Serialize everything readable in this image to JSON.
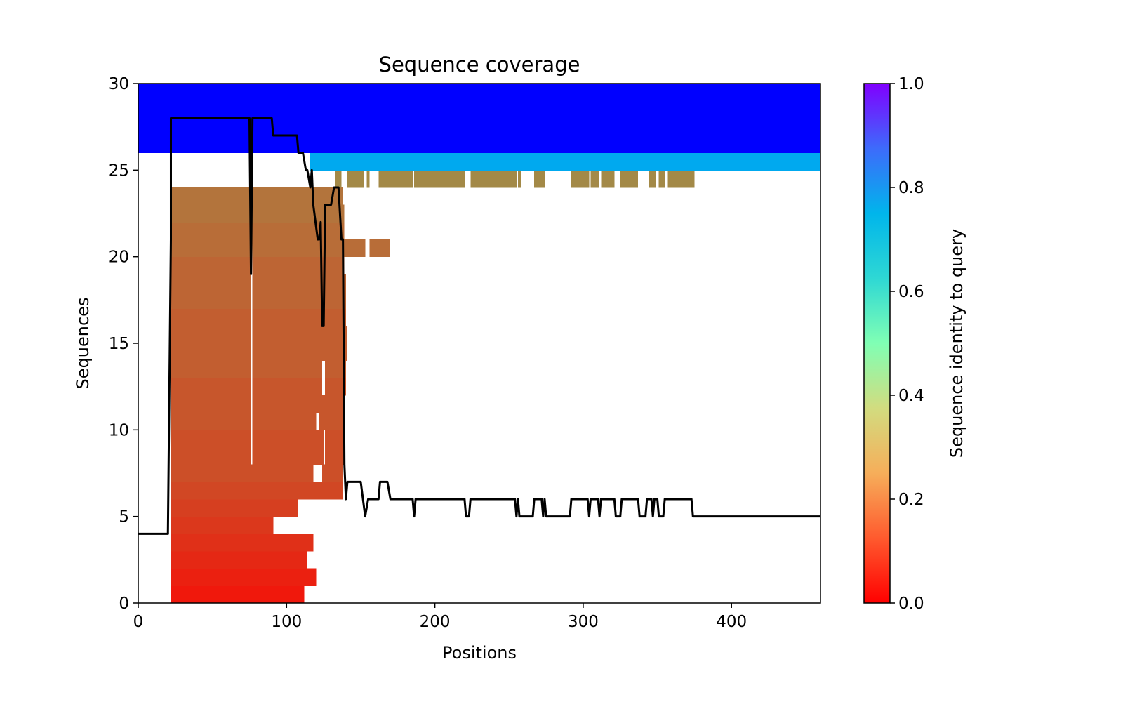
{
  "chart_data": {
    "type": "heatmap",
    "title": "Sequence coverage",
    "xlabel": "Positions",
    "ylabel": "Sequences",
    "xlim": [
      0,
      460
    ],
    "ylim": [
      0,
      30
    ],
    "xticks": [
      "0",
      "100",
      "200",
      "300",
      "400"
    ],
    "yticks": [
      "0",
      "5",
      "10",
      "15",
      "20",
      "25",
      "30"
    ],
    "colorbar": {
      "label": "Sequence identity to query",
      "ticks": [
        "0.0",
        "0.2",
        "0.4",
        "0.6",
        "0.8",
        "1.0"
      ],
      "range": [
        0,
        1
      ],
      "colormap": "rainbow_r"
    },
    "coverage_rows": [
      {
        "row": 0,
        "identity": 0.03,
        "spans": [
          [
            22,
            112
          ]
        ]
      },
      {
        "row": 1,
        "identity": 0.04,
        "spans": [
          [
            22,
            120
          ]
        ]
      },
      {
        "row": 2,
        "identity": 0.05,
        "spans": [
          [
            22,
            114
          ]
        ]
      },
      {
        "row": 3,
        "identity": 0.06,
        "spans": [
          [
            22,
            118
          ]
        ]
      },
      {
        "row": 4,
        "identity": 0.07,
        "spans": [
          [
            22,
            91
          ]
        ]
      },
      {
        "row": 5,
        "identity": 0.08,
        "spans": [
          [
            22,
            108
          ]
        ]
      },
      {
        "row": 6,
        "identity": 0.09,
        "spans": [
          [
            22,
            138
          ]
        ]
      },
      {
        "row": 7,
        "identity": 0.1,
        "spans": [
          [
            22,
            118
          ],
          [
            124,
            138
          ]
        ]
      },
      {
        "row": 8,
        "identity": 0.1,
        "spans": [
          [
            22,
            76
          ],
          [
            77,
            125
          ],
          [
            126,
            139
          ]
        ]
      },
      {
        "row": 9,
        "identity": 0.1,
        "spans": [
          [
            22,
            76
          ],
          [
            77,
            125
          ],
          [
            126,
            139
          ]
        ]
      },
      {
        "row": 10,
        "identity": 0.11,
        "spans": [
          [
            22,
            76
          ],
          [
            77,
            120
          ],
          [
            122,
            139
          ]
        ]
      },
      {
        "row": 11,
        "identity": 0.11,
        "spans": [
          [
            22,
            76
          ],
          [
            77,
            139
          ]
        ]
      },
      {
        "row": 12,
        "identity": 0.11,
        "spans": [
          [
            22,
            76
          ],
          [
            77,
            124
          ],
          [
            126,
            140
          ]
        ]
      },
      {
        "row": 13,
        "identity": 0.12,
        "spans": [
          [
            22,
            76
          ],
          [
            77,
            124
          ],
          [
            126,
            140
          ]
        ]
      },
      {
        "row": 14,
        "identity": 0.12,
        "spans": [
          [
            22,
            76
          ],
          [
            77,
            141
          ]
        ]
      },
      {
        "row": 15,
        "identity": 0.12,
        "spans": [
          [
            22,
            76
          ],
          [
            77,
            141
          ]
        ]
      },
      {
        "row": 16,
        "identity": 0.12,
        "spans": [
          [
            22,
            76
          ],
          [
            77,
            140
          ]
        ]
      },
      {
        "row": 17,
        "identity": 0.13,
        "spans": [
          [
            22,
            76
          ],
          [
            77,
            140
          ]
        ]
      },
      {
        "row": 18,
        "identity": 0.13,
        "spans": [
          [
            22,
            76
          ],
          [
            77,
            140
          ]
        ]
      },
      {
        "row": 19,
        "identity": 0.13,
        "spans": [
          [
            22,
            76
          ],
          [
            77,
            139
          ]
        ]
      },
      {
        "row": 20,
        "identity": 0.14,
        "spans": [
          [
            22,
            76
          ],
          [
            77,
            140
          ],
          [
            140,
            153
          ],
          [
            156,
            170
          ]
        ]
      },
      {
        "row": 21,
        "identity": 0.14,
        "spans": [
          [
            22,
            76
          ],
          [
            77,
            139
          ]
        ]
      },
      {
        "row": 22,
        "identity": 0.15,
        "spans": [
          [
            22,
            76
          ],
          [
            77,
            139
          ]
        ]
      },
      {
        "row": 23,
        "identity": 0.15,
        "spans": [
          [
            22,
            138
          ]
        ]
      },
      {
        "row": 24,
        "identity": 0.18,
        "spans": [
          [
            133,
            137
          ],
          [
            141,
            152
          ],
          [
            154,
            156
          ],
          [
            162,
            185
          ],
          [
            186,
            220
          ],
          [
            224,
            255
          ],
          [
            256,
            258
          ],
          [
            267,
            274
          ],
          [
            292,
            304
          ],
          [
            305,
            311
          ],
          [
            312,
            321
          ],
          [
            325,
            337
          ],
          [
            344,
            349
          ],
          [
            351,
            355
          ],
          [
            357,
            375
          ]
        ]
      },
      {
        "row": 25,
        "identity": 0.77,
        "spans": [
          [
            116,
            460
          ]
        ]
      },
      {
        "row": 26,
        "identity": 1.0,
        "spans": [
          [
            0,
            460
          ]
        ]
      },
      {
        "row": 27,
        "identity": 1.0,
        "spans": [
          [
            0,
            460
          ]
        ]
      },
      {
        "row": 28,
        "identity": 1.0,
        "spans": [
          [
            0,
            460
          ]
        ]
      },
      {
        "row": 29,
        "identity": 1.0,
        "spans": [
          [
            0,
            460
          ]
        ]
      }
    ],
    "coverage_line": [
      [
        0,
        4
      ],
      [
        20,
        4
      ],
      [
        22,
        21
      ],
      [
        22,
        28
      ],
      [
        75,
        28
      ],
      [
        76,
        19
      ],
      [
        77,
        28
      ],
      [
        90,
        28
      ],
      [
        91,
        27
      ],
      [
        107,
        27
      ],
      [
        108,
        26
      ],
      [
        111,
        26
      ],
      [
        113,
        25
      ],
      [
        114,
        25
      ],
      [
        116,
        24
      ],
      [
        117,
        25
      ],
      [
        118,
        23
      ],
      [
        121,
        21
      ],
      [
        122,
        21
      ],
      [
        123,
        22
      ],
      [
        124,
        16
      ],
      [
        125,
        16
      ],
      [
        126,
        23
      ],
      [
        130,
        23
      ],
      [
        132,
        24
      ],
      [
        135,
        24
      ],
      [
        137,
        21
      ],
      [
        138,
        21
      ],
      [
        139,
        8
      ],
      [
        140,
        6
      ],
      [
        141,
        7
      ],
      [
        150,
        7
      ],
      [
        153,
        5
      ],
      [
        155,
        6
      ],
      [
        162,
        6
      ],
      [
        163,
        7
      ],
      [
        168,
        7
      ],
      [
        170,
        6
      ],
      [
        185,
        6
      ],
      [
        186,
        5
      ],
      [
        187,
        6
      ],
      [
        220,
        6
      ],
      [
        221,
        5
      ],
      [
        223,
        5
      ],
      [
        224,
        6
      ],
      [
        254,
        6
      ],
      [
        255,
        5
      ],
      [
        256,
        6
      ],
      [
        257,
        5
      ],
      [
        266,
        5
      ],
      [
        267,
        6
      ],
      [
        272,
        6
      ],
      [
        273,
        5
      ],
      [
        274,
        6
      ],
      [
        275,
        5
      ],
      [
        291,
        5
      ],
      [
        292,
        6
      ],
      [
        303,
        6
      ],
      [
        304,
        5
      ],
      [
        305,
        6
      ],
      [
        310,
        6
      ],
      [
        311,
        5
      ],
      [
        312,
        6
      ],
      [
        321,
        6
      ],
      [
        322,
        5
      ],
      [
        325,
        5
      ],
      [
        326,
        6
      ],
      [
        337,
        6
      ],
      [
        338,
        5
      ],
      [
        342,
        5
      ],
      [
        343,
        6
      ],
      [
        346,
        6
      ],
      [
        347,
        5
      ],
      [
        348,
        6
      ],
      [
        350,
        6
      ],
      [
        351,
        5
      ],
      [
        354,
        5
      ],
      [
        355,
        6
      ],
      [
        373,
        6
      ],
      [
        374,
        5
      ],
      [
        460,
        5
      ]
    ]
  }
}
